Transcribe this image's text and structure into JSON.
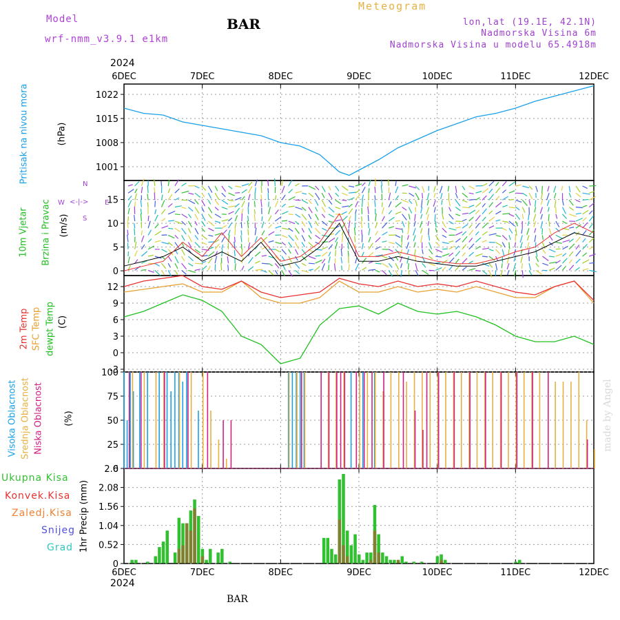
{
  "header": {
    "model_label": "Model",
    "model_name": "wrf-nmm_v3.9.1 e1km",
    "station": "BAR",
    "product": "Meteogram",
    "location_line1": "lon,lat (19.1E, 42.1N)",
    "location_line2": "Nadmorska Visina 6m",
    "location_line3": "Nadmorska Visina u modelu 65.4918m"
  },
  "dates": {
    "year_top": "2024",
    "year_bottom": "2024",
    "ticks": [
      "6DEC",
      "7DEC",
      "8DEC",
      "9DEC",
      "10DEC",
      "11DEC",
      "12DEC"
    ]
  },
  "footer": {
    "station": "BAR",
    "credit": "made by Angel"
  },
  "colors": {
    "pressure": "#18a0e8",
    "wind_label": "#20c020",
    "t2m": "#e83030",
    "tsfc": "#e8a030",
    "dewpt": "#20c020",
    "cloud_high": "#18a0e8",
    "cloud_mid": "#e8b040",
    "cloud_low": "#d02080",
    "rain_total": "#30c030",
    "rain_conv": "#e83030",
    "rain_frz": "#f08030",
    "snow": "#5050e0",
    "graupel": "#30c8c0"
  },
  "panels": {
    "pressure": {
      "label": "Pritisak na nivou mora",
      "unit": "(hPa)"
    },
    "wind": {
      "label1": "10m Vjetar",
      "label2": "Brzina i Pravac",
      "unit": "(m/s)",
      "compass_n": "N",
      "compass_s": "S",
      "compass_w": "W",
      "compass_e": "E"
    },
    "temp": {
      "label1": "2m Temp",
      "label2": "SFC Temp",
      "label3": "dewpt Temp",
      "unit": "(C)"
    },
    "cloud": {
      "label1": "Visoka Oblacnost",
      "label2": "Srednja Oblacnost",
      "label3": "Niska Oblacnost",
      "unit": "(%)"
    },
    "precip": {
      "label": "1hr Precip (mm)",
      "legend": [
        "Ukupna Kisa",
        "Konvek.Kisa",
        "Zaledj.Kisa",
        "Snijeg",
        "Grad"
      ]
    }
  },
  "chart_data": [
    {
      "type": "line",
      "x_start": "2024-12-06",
      "x_end": "2024-12-12",
      "x_ticks": [
        "6DEC",
        "7DEC",
        "8DEC",
        "9DEC",
        "10DEC",
        "11DEC",
        "12DEC"
      ],
      "ylim": [
        997,
        1025
      ],
      "y_ticks": [
        1001,
        1008,
        1015,
        1022
      ],
      "grid": true,
      "series": [
        {
          "x_days": [
            0,
            0.25,
            0.5,
            0.75,
            1,
            1.25,
            1.5,
            1.75,
            2,
            2.25,
            2.5,
            2.625,
            2.75,
            2.875,
            3,
            3.25,
            3.5,
            3.75,
            4,
            4.25,
            4.5,
            4.75,
            5,
            5.25,
            5.5,
            5.75,
            6
          ],
          "values": [
            1018,
            1016.5,
            1016,
            1014,
            1013,
            1012,
            1011,
            1010,
            1008,
            1007,
            1004.5,
            1002,
            999.5,
            998.5,
            1000,
            1003,
            1006.5,
            1009,
            1011.5,
            1013.5,
            1015.5,
            1016.5,
            1018,
            1020,
            1021.5,
            1023,
            1024.5
          ]
        }
      ]
    },
    {
      "type": "line",
      "x_start": "2024-12-06",
      "x_end": "2024-12-12",
      "ylim": [
        -1,
        19
      ],
      "y_ticks": [
        0,
        5,
        10,
        15
      ],
      "grid": true,
      "series": [
        {
          "x_days": [
            0,
            0.25,
            0.5,
            0.75,
            1,
            1.25,
            1.5,
            1.75,
            2,
            2.25,
            2.5,
            2.75,
            3,
            3.25,
            3.5,
            3.75,
            4,
            4.25,
            4.5,
            4.75,
            5,
            5.25,
            5.5,
            5.75,
            6
          ],
          "values": [
            1,
            2,
            3,
            5,
            2,
            4,
            2,
            6,
            1,
            2,
            5,
            10,
            2,
            2,
            3,
            2,
            1.5,
            1,
            1,
            2,
            3,
            4,
            6,
            8,
            7
          ]
        },
        {
          "x_days": [
            0,
            0.25,
            0.5,
            0.75,
            1,
            1.25,
            1.5,
            1.75,
            2,
            2.25,
            2.5,
            2.75,
            3,
            3.25,
            3.5,
            3.75,
            4,
            4.25,
            4.5,
            4.75,
            5,
            5.25,
            5.5,
            5.75,
            6
          ],
          "values": [
            0,
            1,
            2,
            6,
            3,
            8,
            3,
            7,
            2,
            3,
            6,
            12,
            3,
            3,
            4,
            3,
            2,
            1.5,
            1.5,
            2.5,
            4,
            5,
            8,
            10,
            8
          ]
        }
      ]
    },
    {
      "type": "line",
      "x_start": "2024-12-06",
      "x_end": "2024-12-12",
      "ylim": [
        -3.5,
        14
      ],
      "y_ticks": [
        -3,
        0,
        3,
        6,
        9,
        12
      ],
      "grid": true,
      "series": [
        {
          "name": "2m Temp",
          "x_days": [
            0,
            0.25,
            0.5,
            0.75,
            1,
            1.25,
            1.5,
            1.75,
            2,
            2.25,
            2.5,
            2.75,
            3,
            3.25,
            3.5,
            3.75,
            4,
            4.25,
            4.5,
            4.75,
            5,
            5.25,
            5.5,
            5.75,
            6
          ],
          "values": [
            12,
            13,
            13.5,
            14,
            12,
            11.5,
            13,
            11,
            10,
            10.5,
            11,
            13.5,
            12.5,
            12,
            13,
            12,
            12.5,
            12,
            13,
            12,
            11,
            10.5,
            12,
            13,
            9.5
          ]
        },
        {
          "name": "SFC Temp",
          "x_days": [
            0,
            0.25,
            0.5,
            0.75,
            1,
            1.25,
            1.5,
            1.75,
            2,
            2.25,
            2.5,
            2.75,
            3,
            3.25,
            3.5,
            3.75,
            4,
            4.25,
            4.5,
            4.75,
            5,
            5.25,
            5.5,
            5.75,
            6
          ],
          "values": [
            11,
            11.5,
            12,
            12.5,
            11,
            11,
            13,
            10,
            9,
            9,
            10,
            13,
            11,
            11,
            12,
            11,
            11.5,
            11,
            12,
            11,
            10,
            10,
            12,
            13,
            9
          ]
        },
        {
          "name": "dewpt Temp",
          "x_days": [
            0,
            0.25,
            0.5,
            0.75,
            1,
            1.25,
            1.5,
            1.75,
            2,
            2.25,
            2.5,
            2.75,
            3,
            3.25,
            3.5,
            3.75,
            4,
            4.25,
            4.5,
            4.75,
            5,
            5.25,
            5.5,
            5.75,
            6
          ],
          "values": [
            6.5,
            7.5,
            9,
            10.5,
            9.5,
            7.5,
            3,
            1.5,
            -2,
            -1,
            5,
            8,
            8.5,
            7,
            9,
            7.5,
            7,
            7.5,
            6.5,
            5,
            3,
            2,
            2,
            3,
            1.5
          ]
        }
      ]
    },
    {
      "type": "bar",
      "x_start": "2024-12-06",
      "x_end": "2024-12-12",
      "ylim": [
        0,
        100
      ],
      "y_ticks": [
        0,
        25,
        50,
        75,
        100
      ],
      "grid": true,
      "series": [
        {
          "name": "Visoka Oblacnost",
          "x_days": [
            0,
            0.04,
            0.08,
            0.12,
            0.2,
            0.3,
            0.45,
            0.55,
            0.6,
            0.65,
            0.7,
            0.75,
            0.8,
            0.95,
            2.1,
            2.15,
            2.2,
            2.25,
            2.3,
            2.9,
            3.05,
            3.2
          ],
          "values": [
            100,
            50,
            100,
            80,
            100,
            100,
            100,
            100,
            80,
            100,
            100,
            90,
            100,
            60,
            100,
            100,
            100,
            100,
            100,
            100,
            100,
            100
          ]
        },
        {
          "name": "Srednja Oblacnost",
          "x_days": [
            0.1,
            0.25,
            0.4,
            0.5,
            0.7,
            0.85,
            1.0,
            1.1,
            1.2,
            1.3,
            2.1,
            2.2,
            2.3,
            2.6,
            2.7,
            2.8,
            3.0,
            3.1,
            3.2,
            3.3,
            3.4,
            3.5,
            3.6,
            3.7,
            3.8,
            3.9,
            4.0,
            4.1,
            4.2,
            4.3,
            4.4,
            4.5,
            4.6,
            4.7,
            4.8,
            4.9,
            5.0,
            5.1,
            5.2,
            5.3,
            5.5,
            5.6,
            5.7,
            5.8,
            5.9,
            6.0
          ],
          "values": [
            100,
            100,
            100,
            100,
            100,
            100,
            100,
            60,
            30,
            10,
            100,
            100,
            100,
            100,
            100,
            100,
            100,
            100,
            100,
            80,
            100,
            100,
            90,
            100,
            100,
            100,
            100,
            100,
            100,
            100,
            100,
            100,
            100,
            100,
            100,
            100,
            100,
            100,
            100,
            100,
            90,
            90,
            90,
            100,
            50,
            20
          ]
        },
        {
          "name": "Niska Oblacnost",
          "x_days": [
            0.05,
            0.2,
            0.5,
            0.8,
            1.05,
            1.25,
            1.35,
            2.25,
            2.5,
            2.6,
            2.7,
            2.75,
            2.8,
            2.95,
            3.05,
            3.15,
            3.3,
            3.55,
            3.7,
            3.8,
            3.85,
            4.0,
            4.2,
            4.4,
            4.6,
            4.8,
            5.0,
            5.2,
            5.4,
            5.9
          ],
          "values": [
            100,
            100,
            100,
            100,
            100,
            50,
            50,
            100,
            100,
            100,
            100,
            100,
            100,
            100,
            100,
            100,
            100,
            100,
            60,
            40,
            100,
            100,
            100,
            100,
            100,
            100,
            100,
            100,
            100,
            30
          ]
        }
      ]
    },
    {
      "type": "bar",
      "x_start": "2024-12-06",
      "x_end": "2024-12-12",
      "ylim": [
        0,
        2.6
      ],
      "y_ticks": [
        0,
        0.52,
        1.04,
        1.56,
        2.08,
        2.6
      ],
      "grid": true,
      "series": [
        {
          "name": "Ukupna Kisa",
          "x_days": [
            0.1,
            0.15,
            0.3,
            0.4,
            0.45,
            0.5,
            0.55,
            0.65,
            0.7,
            0.75,
            0.8,
            0.85,
            0.9,
            0.95,
            1.0,
            1.05,
            1.1,
            1.2,
            1.25,
            1.35,
            2.55,
            2.6,
            2.65,
            2.7,
            2.75,
            2.8,
            2.85,
            2.9,
            2.95,
            3.0,
            3.05,
            3.1,
            3.15,
            3.2,
            3.25,
            3.3,
            3.35,
            3.4,
            3.45,
            3.5,
            3.55,
            3.6,
            3.7,
            3.8,
            4.0,
            4.05,
            4.1,
            5.0,
            5.05
          ],
          "values": [
            0.1,
            0.1,
            0.05,
            0.2,
            0.45,
            0.6,
            0.9,
            0.3,
            1.25,
            1.1,
            1.1,
            1.45,
            1.75,
            1.3,
            0.4,
            0.1,
            0.4,
            0.3,
            0.4,
            0.05,
            0.7,
            0.7,
            0.4,
            0.25,
            2.3,
            2.45,
            0.9,
            0.5,
            0.8,
            0.25,
            0.1,
            0.3,
            0.3,
            1.6,
            0.8,
            0.3,
            0.2,
            0.1,
            0.1,
            0.05,
            0.2,
            0.05,
            0.05,
            0.05,
            0.2,
            0.25,
            0.1,
            0.05,
            0.1
          ]
        },
        {
          "name": "Konvek.Kisa",
          "x_days": [
            0.7,
            0.75,
            0.8,
            0.85,
            0.9,
            1.0,
            2.75,
            2.8,
            2.85,
            3.15,
            3.2,
            3.25,
            3.5,
            4.05
          ],
          "values": [
            0.4,
            0.5,
            1.1,
            0.9,
            1.5,
            0.2,
            1.2,
            0.5,
            0.2,
            0.1,
            0.9,
            0.3,
            0.1,
            0.1
          ]
        }
      ]
    }
  ]
}
